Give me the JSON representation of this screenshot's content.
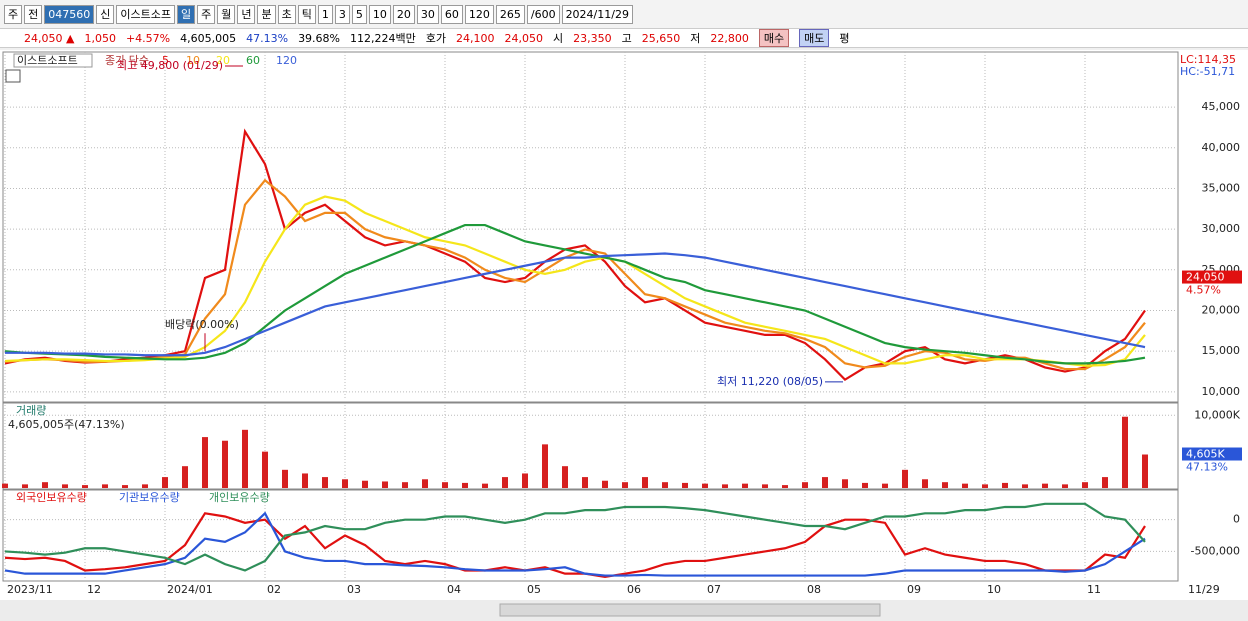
{
  "toolbar": {
    "items": [
      "주",
      "전",
      "047560",
      "신",
      "이스트소프",
      "일",
      "주",
      "월",
      "년",
      "분",
      "초",
      "틱",
      "1",
      "3",
      "5",
      "10",
      "20",
      "30",
      "60",
      "120",
      "265",
      "/600",
      "2024/11/29"
    ]
  },
  "info": [
    "24,050 ▲",
    "1,050",
    "+4.57%",
    "4,605,005",
    "47.13%",
    "39.68%",
    "112,224백만",
    "호가",
    "24,100",
    "24,050",
    "시",
    "23,350",
    "고",
    "25,650",
    "저",
    "22,800",
    "매수",
    "매도",
    "평"
  ],
  "x_end_label": "11/29",
  "chart_data": [
    {
      "type": "line",
      "name": "이스트소프트",
      "legend_title": "종가 단순",
      "ylim": [
        9000,
        51400
      ],
      "yticks": [
        {
          "value": 10000,
          "label": "10,000"
        },
        {
          "value": 15000,
          "label": "15,000"
        },
        {
          "value": 20000,
          "label": "20,000"
        },
        {
          "value": 25000,
          "label": "25,000"
        },
        {
          "value": 30000,
          "label": "30,000"
        },
        {
          "value": 35000,
          "label": "35,000"
        },
        {
          "value": 40000,
          "label": "40,000"
        },
        {
          "value": 45000,
          "label": "45,000"
        }
      ],
      "lc": "LC:114,35",
      "hc": "HC:-51,71",
      "current": {
        "value": 24050,
        "label": "24,050"
      },
      "current_pct": "4.57%",
      "annotations": [
        {
          "text": "최고 49,800 (01/29)",
          "x": 12,
          "y": 49800
        },
        {
          "text": "최저 11,220 (08/05)",
          "x": 42,
          "y": 11220
        },
        {
          "text": "배당락(0.00%)",
          "x": 10,
          "y": 14500
        }
      ],
      "series": [
        {
          "name": "5",
          "color": "#e01010",
          "values": [
            13500,
            14000,
            14200,
            13800,
            13600,
            13700,
            14000,
            14200,
            14500,
            15000,
            24000,
            25000,
            42000,
            38000,
            30000,
            32000,
            33000,
            31000,
            29000,
            28000,
            28500,
            28000,
            27000,
            26000,
            24000,
            23500,
            24000,
            26000,
            27500,
            28000,
            26000,
            23000,
            21000,
            21500,
            20000,
            18500,
            18000,
            17500,
            17000,
            17000,
            16000,
            14000,
            11500,
            13000,
            13500,
            15000,
            15500,
            14000,
            13500,
            14000,
            14500,
            14000,
            13000,
            12500,
            13000,
            15000,
            16500,
            20000
          ]
        },
        {
          "name": "10",
          "color": "#f08a1c",
          "values": [
            13700,
            13900,
            14000,
            13900,
            13700,
            13700,
            13800,
            14000,
            14300,
            14600,
            19000,
            22000,
            33000,
            36000,
            34000,
            31000,
            32000,
            32000,
            30000,
            29000,
            28500,
            28000,
            27500,
            26500,
            25000,
            24000,
            23500,
            25000,
            26500,
            27500,
            27000,
            24500,
            22000,
            21500,
            20500,
            19500,
            18500,
            18000,
            17500,
            17200,
            16500,
            15500,
            13500,
            13000,
            13200,
            14300,
            15000,
            14800,
            14000,
            13800,
            14200,
            14200,
            13500,
            12800,
            12800,
            14000,
            15500,
            18500
          ]
        },
        {
          "name": "20",
          "color": "#f5e61a",
          "values": [
            13800,
            13900,
            14000,
            14000,
            13900,
            13800,
            13800,
            13900,
            14100,
            14300,
            15500,
            17500,
            21000,
            26000,
            30000,
            33000,
            34000,
            33500,
            32000,
            31000,
            30000,
            29000,
            28500,
            28000,
            27000,
            26000,
            25000,
            24500,
            25000,
            26000,
            26500,
            26000,
            24500,
            23000,
            21500,
            20500,
            19500,
            18500,
            18000,
            17500,
            17000,
            16500,
            15500,
            14500,
            13500,
            13500,
            14000,
            14500,
            14500,
            14000,
            14000,
            14000,
            13800,
            13500,
            13200,
            13300,
            14000,
            17000
          ]
        },
        {
          "name": "60",
          "color": "#1f9a3a",
          "values": [
            15000,
            14800,
            14700,
            14600,
            14500,
            14300,
            14200,
            14100,
            14000,
            14000,
            14200,
            14800,
            16000,
            18000,
            20000,
            21500,
            23000,
            24500,
            25500,
            26500,
            27500,
            28500,
            29500,
            30500,
            30500,
            29500,
            28500,
            28000,
            27500,
            27000,
            26500,
            26000,
            25000,
            24000,
            23500,
            22500,
            22000,
            21500,
            21000,
            20500,
            20000,
            19000,
            18000,
            17000,
            16000,
            15500,
            15200,
            15000,
            14800,
            14500,
            14200,
            14000,
            13700,
            13500,
            13500,
            13600,
            13800,
            14200
          ]
        },
        {
          "name": "120",
          "color": "#3a5fd8",
          "values": [
            14800,
            14800,
            14800,
            14700,
            14700,
            14600,
            14600,
            14500,
            14500,
            14500,
            14800,
            15500,
            16500,
            17500,
            18500,
            19500,
            20500,
            21000,
            21500,
            22000,
            22500,
            23000,
            23500,
            24000,
            24500,
            25000,
            25500,
            26000,
            26500,
            26500,
            26700,
            26800,
            26900,
            27000,
            26800,
            26500,
            26000,
            25500,
            25000,
            24500,
            24000,
            23500,
            23000,
            22500,
            22000,
            21500,
            21000,
            20500,
            20000,
            19500,
            19000,
            18500,
            18000,
            17500,
            17000,
            16500,
            16000,
            15500
          ]
        }
      ]
    },
    {
      "type": "bar",
      "name": "거래량",
      "summary": "4,605,005주(47.13%)",
      "color": "#d62020",
      "ylim": [
        0,
        11000
      ],
      "yticks": [
        {
          "value": 10000,
          "label": "10,000K"
        }
      ],
      "current": {
        "value": 4605,
        "label": "4,605K"
      },
      "current_pct": "47.13%",
      "values": [
        600,
        500,
        800,
        500,
        400,
        500,
        400,
        500,
        1500,
        3000,
        7000,
        6500,
        8000,
        5000,
        2500,
        2000,
        1500,
        1200,
        1000,
        900,
        800,
        1200,
        800,
        700,
        600,
        1500,
        2000,
        6000,
        3000,
        1500,
        1000,
        800,
        1500,
        800,
        700,
        600,
        500,
        600,
        500,
        400,
        800,
        1500,
        1200,
        700,
        600,
        2500,
        1200,
        800,
        600,
        500,
        700,
        500,
        600,
        500,
        800,
        1500,
        9800,
        4605
      ]
    },
    {
      "type": "line",
      "ylim": [
        -950000,
        420000
      ],
      "yticks": [
        0,
        {
          "value": -500000,
          "label": "-500,000"
        }
      ],
      "categories": [
        "2023/11",
        null,
        null,
        null,
        "12",
        null,
        null,
        null,
        "2024/01",
        null,
        null,
        null,
        null,
        "02",
        null,
        null,
        null,
        "03",
        null,
        null,
        null,
        null,
        "04",
        null,
        null,
        null,
        "05",
        null,
        null,
        null,
        null,
        "06",
        null,
        null,
        null,
        "07",
        null,
        null,
        null,
        null,
        "08",
        null,
        null,
        null,
        null,
        "09",
        null,
        null,
        null,
        "10",
        null,
        null,
        null,
        null,
        "11",
        null,
        null,
        null
      ],
      "series": [
        {
          "name": "외국인보유수량",
          "color": "#e01010",
          "values": [
            -600000,
            -620000,
            -600000,
            -650000,
            -800000,
            -780000,
            -750000,
            -700000,
            -650000,
            -400000,
            100000,
            50000,
            -50000,
            0,
            -300000,
            -100000,
            -450000,
            -250000,
            -400000,
            -650000,
            -700000,
            -650000,
            -700000,
            -800000,
            -800000,
            -750000,
            -800000,
            -750000,
            -850000,
            -850000,
            -900000,
            -850000,
            -800000,
            -700000,
            -650000,
            -650000,
            -600000,
            -550000,
            -500000,
            -450000,
            -350000,
            -100000,
            0,
            0,
            -50000,
            -550000,
            -450000,
            -550000,
            -600000,
            -650000,
            -650000,
            -700000,
            -800000,
            -800000,
            -800000,
            -550000,
            -600000,
            -100000
          ]
        },
        {
          "name": "기관보유수량",
          "color": "#2a56d8",
          "values": [
            -800000,
            -850000,
            -850000,
            -850000,
            -850000,
            -850000,
            -800000,
            -750000,
            -700000,
            -600000,
            -300000,
            -350000,
            -200000,
            100000,
            -500000,
            -600000,
            -650000,
            -650000,
            -700000,
            -700000,
            -720000,
            -730000,
            -750000,
            -780000,
            -800000,
            -800000,
            -800000,
            -780000,
            -750000,
            -850000,
            -880000,
            -880000,
            -870000,
            -880000,
            -880000,
            -880000,
            -880000,
            -880000,
            -880000,
            -880000,
            -880000,
            -880000,
            -880000,
            -880000,
            -850000,
            -800000,
            -800000,
            -800000,
            -800000,
            -800000,
            -800000,
            -800000,
            -800000,
            -820000,
            -800000,
            -700000,
            -500000,
            -300000
          ]
        },
        {
          "name": "개인보유수량",
          "color": "#2f8f5a",
          "values": [
            -500000,
            -520000,
            -550000,
            -520000,
            -450000,
            -450000,
            -500000,
            -550000,
            -600000,
            -700000,
            -550000,
            -700000,
            -800000,
            -650000,
            -250000,
            -200000,
            -100000,
            -150000,
            -150000,
            -50000,
            0,
            0,
            50000,
            50000,
            0,
            -50000,
            0,
            100000,
            100000,
            150000,
            150000,
            200000,
            200000,
            200000,
            180000,
            150000,
            100000,
            50000,
            0,
            -50000,
            -100000,
            -100000,
            -150000,
            -50000,
            50000,
            50000,
            100000,
            100000,
            150000,
            150000,
            200000,
            200000,
            250000,
            250000,
            250000,
            50000,
            0,
            -350000
          ]
        }
      ]
    }
  ]
}
